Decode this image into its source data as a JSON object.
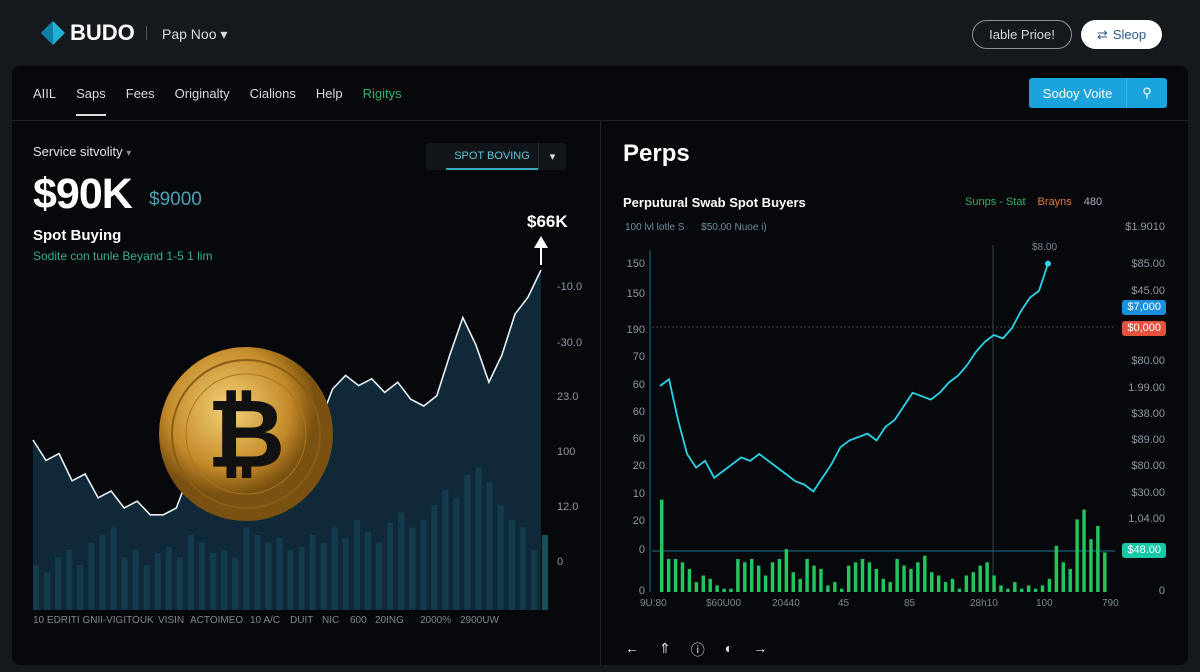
{
  "header": {
    "logo": "BUDO",
    "project": "Pap Noo",
    "project_caret": "▾",
    "btn_outline": "Iable Prioe!",
    "btn_white": "Sleop",
    "btn_white_icon": "swap-icon"
  },
  "nav": {
    "tabs": [
      {
        "label": "AIIL"
      },
      {
        "label": "Saps",
        "active": true
      },
      {
        "label": "Fees"
      },
      {
        "label": "Originalty"
      },
      {
        "label": "Cialions"
      },
      {
        "label": "Help"
      },
      {
        "label": "Rigitys",
        "color": "#2fb36a"
      }
    ],
    "search_label": "Sodoy Voite"
  },
  "left": {
    "service_label": "Service sitvolity",
    "service_caret": "▾",
    "price": "$90K",
    "sub_price": "$9000",
    "title": "Spot Buying",
    "subtitle": "Sodite con tunle Beyand 1-5 1 lim",
    "dropdown": "SPOT BOVING",
    "peak_label": "$66K",
    "y_labels": [
      "-10.0",
      "-30.0",
      "23.0",
      "100",
      "12.0",
      "0"
    ],
    "x_labels": [
      "10 EDRITI GNI",
      "I-VIGITOUK",
      "VISIN",
      "ACTOIMEO",
      "10 A/C",
      "DUIT",
      "NIC",
      "600",
      "20ING",
      "2000%",
      "2900UW"
    ]
  },
  "right": {
    "title": "Perps",
    "subtitle": "Perputural Swab Spot Buyers",
    "legend": [
      {
        "label": "Sunps - Stat",
        "color": "#2fb36a"
      },
      {
        "label": "Brayns",
        "color": "#e07a3a"
      },
      {
        "label": "480",
        "color": "#aab"
      }
    ],
    "meta_left": "100 lvl lotle S",
    "meta_right": "$50.00 Nuoe i)",
    "peak_label": "$8.00",
    "y_left": [
      "150",
      "150",
      "190",
      "70",
      "60",
      "60",
      "60",
      "20",
      "10",
      "20",
      "0",
      "0"
    ],
    "y_right": [
      "$1.9010",
      "$85.00",
      "$45.00",
      "$80.00",
      "1.99.00",
      "$38.00",
      "$89.00",
      "$80.00",
      "$30.00",
      "1,04.00",
      "0"
    ],
    "badges": [
      {
        "label": "$7,000",
        "color": "#1a8fe0"
      },
      {
        "label": "$0,000",
        "color": "#e5533f"
      },
      {
        "label": "$48.00",
        "color": "#17c9a6"
      }
    ],
    "x_labels": [
      "9U:80",
      "$60U00",
      "20440",
      "45",
      "85",
      "28h10",
      "100",
      "790"
    ],
    "footer_icons": [
      "arrow-left-icon",
      "arrow-up-icon",
      "info-icon",
      "half-circle-icon",
      "arrow-right-icon"
    ],
    "footer_glyphs": [
      "←",
      "⇑",
      "ⓘ",
      "◐",
      "→"
    ]
  },
  "chart_data": [
    {
      "type": "area",
      "series": [
        {
          "values": [
            50,
            44,
            46,
            38,
            40,
            33,
            35,
            30,
            32,
            28,
            28,
            30,
            40,
            50,
            58,
            62,
            60,
            63,
            66,
            62,
            48,
            50,
            55,
            65,
            69,
            66,
            68,
            64,
            67,
            62,
            60,
            63,
            75,
            86,
            78,
            67,
            75,
            87,
            92,
            100
          ]
        }
      ],
      "volume": [
        30,
        25,
        35,
        40,
        30,
        45,
        50,
        55,
        35,
        40,
        30,
        38,
        42,
        35,
        50,
        45,
        38,
        40,
        35,
        55,
        50,
        45,
        48,
        40,
        42,
        50,
        45,
        55,
        48,
        60,
        52,
        45,
        58,
        65,
        55,
        60,
        70,
        80,
        75,
        90,
        95,
        85,
        70,
        60,
        55,
        40,
        50
      ],
      "colors": {
        "line": "#e8f1f8",
        "area": "#13344a",
        "volume": "#1f6f78"
      }
    },
    {
      "type": "line",
      "series": [
        {
          "values": [
            60,
            62,
            50,
            40,
            36,
            38,
            33,
            35,
            37,
            39,
            38,
            40,
            38,
            36,
            34,
            32,
            31,
            29,
            33,
            37,
            42,
            44,
            45,
            46,
            44,
            48,
            50,
            54,
            58,
            57,
            56,
            58,
            61,
            63,
            66,
            70,
            73,
            75,
            74,
            77,
            82,
            86,
            88,
            96
          ]
        }
      ],
      "volume": [
        28,
        10,
        10,
        9,
        7,
        3,
        5,
        4,
        2,
        1,
        1,
        10,
        9,
        10,
        8,
        5,
        9,
        10,
        13,
        6,
        4,
        10,
        8,
        7,
        2,
        3,
        1,
        8,
        9,
        10,
        9,
        7,
        4,
        3,
        10,
        8,
        7,
        9,
        11,
        6,
        5,
        3,
        4,
        1,
        5,
        6,
        8,
        9,
        5,
        2,
        1,
        3,
        1,
        2,
        1,
        2,
        4,
        14,
        9,
        7,
        22,
        25,
        16,
        20,
        12
      ],
      "colors": {
        "line": "#2ad4e6",
        "volume": "#22c55e"
      }
    }
  ]
}
